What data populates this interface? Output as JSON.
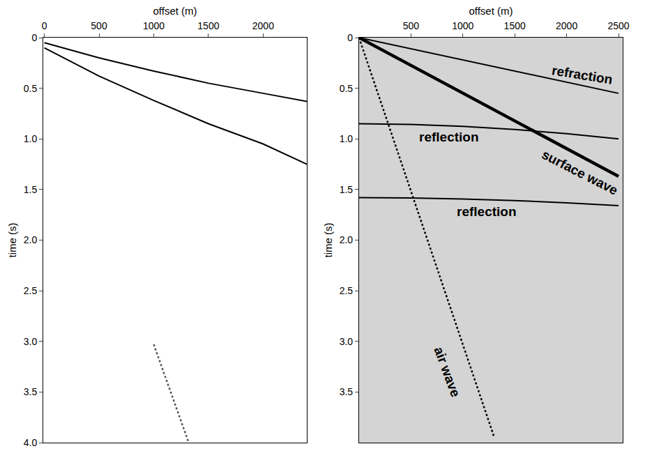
{
  "chart_data": [
    {
      "type": "line",
      "x_label": "offset (m)",
      "y_label": "time (s)",
      "xlim": [
        -10,
        2400
      ],
      "xticks": [
        0,
        500,
        1000,
        1500,
        2000
      ],
      "ylim": [
        0,
        4
      ],
      "yticks": [
        0,
        0.5,
        {
          "value": 1,
          "label": "1.0"
        },
        1.5,
        {
          "value": 2,
          "label": "2.0"
        },
        2.5,
        {
          "value": 3,
          "label": "3.0"
        },
        3.5,
        {
          "value": 4,
          "label": "4.0"
        }
      ],
      "grid": false,
      "series": [
        {
          "color": "#000000",
          "line_style": "solid",
          "x": [
            0,
            500,
            1000,
            1500,
            2000,
            2400
          ],
          "values": [
            0.05,
            0.2,
            0.33,
            0.45,
            0.55,
            0.63
          ]
        },
        {
          "color": "#000000",
          "line_style": "solid",
          "x": [
            0,
            500,
            1000,
            1500,
            2000,
            2400
          ],
          "values": [
            0.1,
            0.38,
            0.62,
            0.85,
            1.05,
            1.25
          ]
        },
        {
          "color": "#555555",
          "line_style": "dotted",
          "x": [
            1000,
            1320
          ],
          "values": [
            3.03,
            4.0
          ]
        }
      ]
    },
    {
      "type": "line",
      "x_label": "offset (m)",
      "y_label": "time (s)",
      "xlim": [
        0,
        2540
      ],
      "xticks": [
        500,
        1000,
        1500,
        2000,
        2500
      ],
      "ylim": [
        0,
        4
      ],
      "yticks": [
        0,
        0.5,
        {
          "value": 1,
          "label": "1.0"
        },
        1.5,
        {
          "value": 2,
          "label": "2.0"
        },
        2.5,
        {
          "value": 3,
          "label": "3.0"
        },
        3.5
      ],
      "grid": false,
      "series": [
        {
          "color": "#000000",
          "line_style": "solid",
          "x": [
            0,
            2500
          ],
          "values": [
            0,
            0.55
          ]
        },
        {
          "color": "#000000",
          "line_style": "thick",
          "x": [
            0,
            2500
          ],
          "values": [
            0,
            1.37
          ]
        },
        {
          "color": "#000000",
          "line_style": "solid",
          "x": [
            0,
            500,
            1000,
            1500,
            2000,
            2500
          ],
          "values": [
            0.85,
            0.857,
            0.876,
            0.907,
            0.949,
            1.0
          ]
        },
        {
          "color": "#000000",
          "line_style": "solid",
          "x": [
            0,
            500,
            1000,
            1500,
            2000,
            2500
          ],
          "values": [
            1.58,
            1.583,
            1.593,
            1.609,
            1.632,
            1.66
          ]
        },
        {
          "color": "#000000",
          "line_style": "dotted",
          "x": [
            0,
            1300
          ],
          "values": [
            0,
            3.94
          ]
        }
      ],
      "annotations": [
        {
          "text": "refraction",
          "x": 2150,
          "y": 0.37
        },
        {
          "text": "reflection",
          "x": 870,
          "y": 0.98
        },
        {
          "text": "surface wave",
          "x": 2130,
          "y": 1.33
        },
        {
          "text": "reflection",
          "x": 1230,
          "y": 1.72
        },
        {
          "text": "air wave",
          "x": 850,
          "y": 3.3
        }
      ]
    }
  ]
}
